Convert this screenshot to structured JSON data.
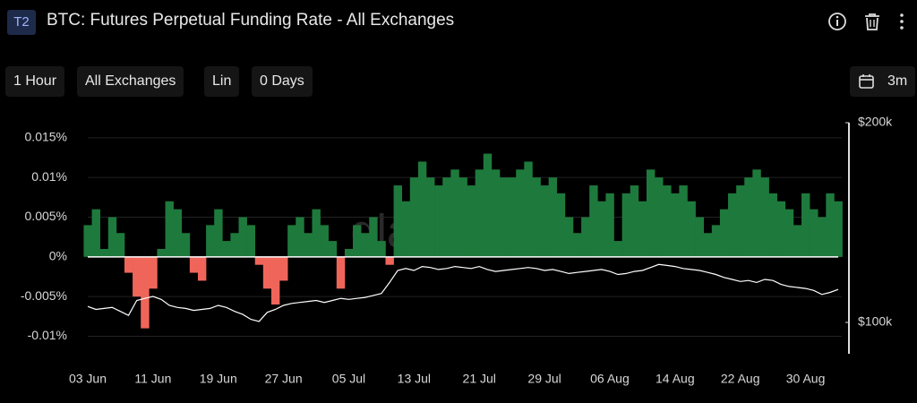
{
  "ui": {
    "badge": "T2",
    "buttons": [
      "1 Hour",
      "All Exchanges",
      "Lin",
      "0 Days"
    ],
    "range": "3m",
    "watermark": "glassnode"
  },
  "chart_data": {
    "type": "bar",
    "title": "BTC: Futures Perpetual Funding Rate - All Exchanges",
    "x": [
      "03 Jun",
      "04 Jun",
      "05 Jun",
      "06 Jun",
      "07 Jun",
      "08 Jun",
      "09 Jun",
      "10 Jun",
      "11 Jun",
      "12 Jun",
      "13 Jun",
      "14 Jun",
      "15 Jun",
      "16 Jun",
      "17 Jun",
      "18 Jun",
      "19 Jun",
      "20 Jun",
      "21 Jun",
      "22 Jun",
      "23 Jun",
      "24 Jun",
      "25 Jun",
      "26 Jun",
      "27 Jun",
      "28 Jun",
      "29 Jun",
      "30 Jun",
      "01 Jul",
      "02 Jul",
      "03 Jul",
      "04 Jul",
      "05 Jul",
      "06 Jul",
      "07 Jul",
      "08 Jul",
      "09 Jul",
      "10 Jul",
      "11 Jul",
      "12 Jul",
      "13 Jul",
      "14 Jul",
      "15 Jul",
      "16 Jul",
      "17 Jul",
      "18 Jul",
      "19 Jul",
      "20 Jul",
      "21 Jul",
      "22 Jul",
      "23 Jul",
      "24 Jul",
      "25 Jul",
      "26 Jul",
      "27 Jul",
      "28 Jul",
      "29 Jul",
      "30 Jul",
      "31 Jul",
      "01 Aug",
      "02 Aug",
      "03 Aug",
      "04 Aug",
      "05 Aug",
      "06 Aug",
      "07 Aug",
      "08 Aug",
      "09 Aug",
      "10 Aug",
      "11 Aug",
      "12 Aug",
      "13 Aug",
      "14 Aug",
      "15 Aug",
      "16 Aug",
      "17 Aug",
      "18 Aug",
      "19 Aug",
      "20 Aug",
      "21 Aug",
      "22 Aug",
      "23 Aug",
      "24 Aug",
      "25 Aug",
      "26 Aug",
      "27 Aug",
      "28 Aug",
      "29 Aug",
      "30 Aug",
      "31 Aug",
      "01 Sep",
      "02 Sep",
      "03 Sep"
    ],
    "xticks": [
      "03 Jun",
      "11 Jun",
      "19 Jun",
      "27 Jun",
      "05 Jul",
      "13 Jul",
      "21 Jul",
      "29 Jul",
      "06 Aug",
      "14 Aug",
      "22 Aug",
      "30 Aug"
    ],
    "ylim": [
      -0.0122,
      0.0169
    ],
    "yticks": [
      {
        "value": 0.015,
        "label": "0.015%"
      },
      {
        "value": 0.01,
        "label": "0.01%"
      },
      {
        "value": 0.005,
        "label": "0.005%"
      },
      {
        "value": 0,
        "label": "0%"
      },
      {
        "value": -0.005,
        "label": "-0.005%"
      },
      {
        "value": -0.01,
        "label": "-0.01%"
      }
    ],
    "y2lim": [
      84300,
      200000
    ],
    "y2ticks": [
      {
        "value": 200000,
        "label": "$200k"
      },
      {
        "value": 100000,
        "label": "$100k"
      }
    ],
    "grid": true,
    "series": [
      {
        "type": "bar",
        "color": "#1e7a3c",
        "negative_color": "#f0655a",
        "values": [
          0.004,
          0.006,
          0.001,
          0.005,
          0.003,
          -0.002,
          -0.005,
          -0.009,
          -0.004,
          0.001,
          0.007,
          0.006,
          0.003,
          -0.002,
          -0.003,
          0.004,
          0.006,
          0.002,
          0.003,
          0.005,
          0.004,
          -0.001,
          -0.004,
          -0.006,
          -0.003,
          0.004,
          0.005,
          0.003,
          0.006,
          0.004,
          0.002,
          -0.004,
          0.001,
          0.004,
          0.003,
          0.005,
          0.002,
          -0.001,
          0.009,
          0.007,
          0.01,
          0.012,
          0.01,
          0.009,
          0.01,
          0.011,
          0.01,
          0.009,
          0.011,
          0.013,
          0.011,
          0.01,
          0.01,
          0.011,
          0.012,
          0.01,
          0.009,
          0.01,
          0.008,
          0.005,
          0.003,
          0.005,
          0.009,
          0.007,
          0.008,
          0.002,
          0.008,
          0.009,
          0.007,
          0.011,
          0.01,
          0.009,
          0.008,
          0.009,
          0.007,
          0.005,
          0.003,
          0.004,
          0.006,
          0.008,
          0.009,
          0.01,
          0.011,
          0.01,
          0.008,
          0.007,
          0.006,
          0.004,
          0.008,
          0.006,
          0.005,
          0.008,
          0.007
        ]
      },
      {
        "type": "line",
        "axis": "y2",
        "color": "#ffffff",
        "values": [
          108000,
          106500,
          107000,
          107500,
          105500,
          103500,
          111000,
          112000,
          113000,
          111500,
          108500,
          107500,
          107000,
          106000,
          106500,
          107000,
          108500,
          107500,
          105500,
          104000,
          101500,
          100500,
          105000,
          106500,
          108500,
          109500,
          110000,
          110500,
          111000,
          110000,
          111000,
          112000,
          111500,
          112000,
          112500,
          113500,
          114500,
          120000,
          126000,
          127000,
          126000,
          128000,
          127500,
          126500,
          127000,
          128000,
          127500,
          127000,
          128000,
          126500,
          125500,
          126000,
          126500,
          127000,
          127500,
          127000,
          126000,
          126500,
          125500,
          124500,
          125000,
          125500,
          126000,
          126500,
          125500,
          124000,
          124500,
          125500,
          126000,
          127500,
          129000,
          128500,
          128000,
          127000,
          126500,
          126000,
          125000,
          124000,
          122500,
          121500,
          120500,
          121000,
          120000,
          121500,
          121000,
          119000,
          118000,
          117500,
          117000,
          116000,
          114000,
          115000,
          116500
        ]
      }
    ]
  }
}
